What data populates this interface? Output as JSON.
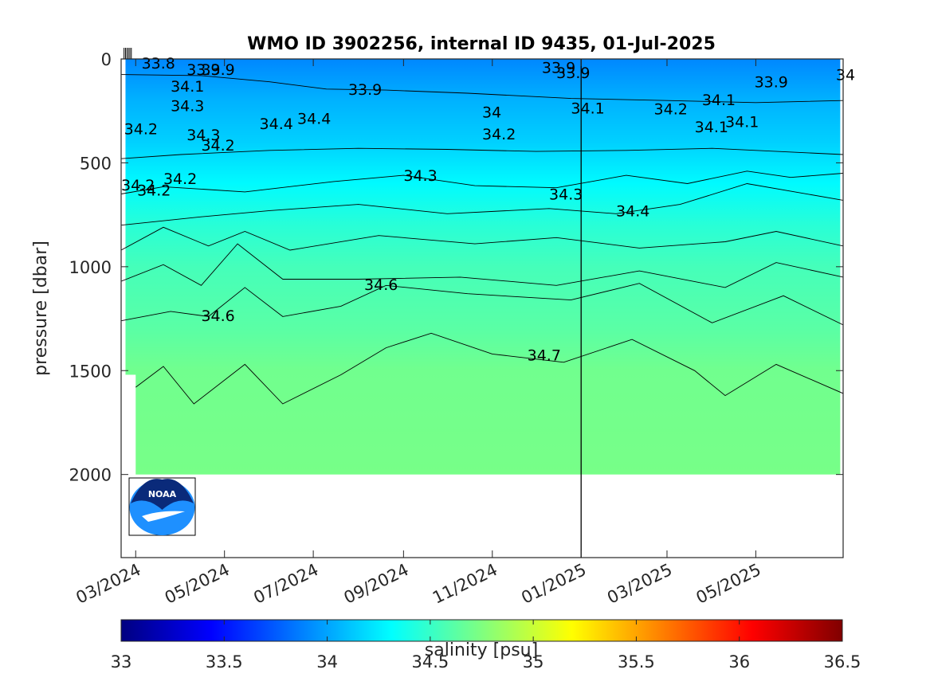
{
  "chart_data": {
    "type": "heatmap",
    "title": "WMO ID 3902256, internal ID 9435, 01-Jul-2025",
    "ylabel": "pressure [dbar]",
    "y_reversed": true,
    "ylim": [
      0,
      2400
    ],
    "yticks": [
      0,
      500,
      1000,
      1500,
      2000
    ],
    "ytick_labels": [
      "0",
      "500",
      "1000",
      "1500",
      "2000"
    ],
    "xlim": [
      "2024-02-20",
      "2025-06-30"
    ],
    "xticks": [
      "2024-03-01",
      "2024-05-01",
      "2024-07-01",
      "2024-09-01",
      "2024-11-01",
      "2025-01-01",
      "2025-03-01",
      "2025-05-01"
    ],
    "xtick_labels": [
      "03/2024",
      "05/2024",
      "07/2024",
      "09/2024",
      "11/2024",
      "01/2025",
      "03/2025",
      "05/2025"
    ],
    "year_boundary_line": "2025-01-01",
    "colorbar": {
      "label": "salinity [psu]",
      "range": [
        33,
        36.5
      ],
      "ticks": [
        33,
        33.5,
        34,
        34.5,
        35,
        35.5,
        36,
        36.5
      ],
      "tick_labels": [
        "33",
        "33.5",
        "34",
        "34.5",
        "35",
        "35.5",
        "36",
        "36.5"
      ],
      "colormap": "jet"
    },
    "contour_levels": [
      33.8,
      33.9,
      34,
      34.1,
      34.2,
      34.3,
      34.4,
      34.5,
      34.6,
      34.7
    ],
    "salinity_profile": [
      {
        "pressure": 0,
        "salinity": 33.9
      },
      {
        "pressure": 200,
        "salinity": 34.05
      },
      {
        "pressure": 400,
        "salinity": 34.15
      },
      {
        "pressure": 600,
        "salinity": 34.3
      },
      {
        "pressure": 800,
        "salinity": 34.45
      },
      {
        "pressure": 1000,
        "salinity": 34.55
      },
      {
        "pressure": 1300,
        "salinity": 34.62
      },
      {
        "pressure": 1500,
        "salinity": 34.7
      },
      {
        "pressure": 2000,
        "salinity": 34.72
      }
    ],
    "contour_labels": [
      {
        "text": "33.8",
        "date": "2024-03-05",
        "pressure": 20
      },
      {
        "text": "33.9",
        "date": "2024-04-05",
        "pressure": 50
      },
      {
        "text": "33.9",
        "date": "2024-04-15",
        "pressure": 50
      },
      {
        "text": "34.1",
        "date": "2024-03-25",
        "pressure": 130
      },
      {
        "text": "34.3",
        "date": "2024-03-25",
        "pressure": 225
      },
      {
        "text": "34.2",
        "date": "2024-02-22",
        "pressure": 335
      },
      {
        "text": "34.3",
        "date": "2024-04-05",
        "pressure": 365
      },
      {
        "text": "34.2",
        "date": "2024-04-15",
        "pressure": 415
      },
      {
        "text": "34.4",
        "date": "2024-05-25",
        "pressure": 310
      },
      {
        "text": "34.4",
        "date": "2024-06-20",
        "pressure": 285
      },
      {
        "text": "33.9",
        "date": "2024-07-25",
        "pressure": 145
      },
      {
        "text": "34.2",
        "date": "2024-03-20",
        "pressure": 575
      },
      {
        "text": "34.2",
        "date": "2024-02-20",
        "pressure": 605
      },
      {
        "text": "34.2",
        "date": "2024-03-02",
        "pressure": 630
      },
      {
        "text": "34.3",
        "date": "2024-09-01",
        "pressure": 560
      },
      {
        "text": "34",
        "date": "2024-10-25",
        "pressure": 255
      },
      {
        "text": "34.2",
        "date": "2024-10-25",
        "pressure": 360
      },
      {
        "text": "33.9",
        "date": "2024-12-05",
        "pressure": 40
      },
      {
        "text": "33.9",
        "date": "2024-12-15",
        "pressure": 65
      },
      {
        "text": "34.1",
        "date": "2024-12-25",
        "pressure": 235
      },
      {
        "text": "34.2",
        "date": "2025-02-20",
        "pressure": 240
      },
      {
        "text": "34.1",
        "date": "2025-03-25",
        "pressure": 195
      },
      {
        "text": "34.1",
        "date": "2025-03-20",
        "pressure": 325
      },
      {
        "text": "34.1",
        "date": "2025-04-10",
        "pressure": 300
      },
      {
        "text": "33.9",
        "date": "2025-04-30",
        "pressure": 110
      },
      {
        "text": "34",
        "date": "2025-06-25",
        "pressure": 75
      },
      {
        "text": "34.3",
        "date": "2024-12-10",
        "pressure": 650
      },
      {
        "text": "34.4",
        "date": "2025-01-25",
        "pressure": 730
      },
      {
        "text": "34.6",
        "date": "2024-08-05",
        "pressure": 1085
      },
      {
        "text": "34.6",
        "date": "2024-04-15",
        "pressure": 1235
      },
      {
        "text": "34.7",
        "date": "2024-11-25",
        "pressure": 1425
      }
    ],
    "isolines": [
      {
        "level": 33.9,
        "points": [
          [
            "2024-02-20",
            75
          ],
          [
            "2024-04-15",
            80
          ],
          [
            "2024-06-01",
            110
          ],
          [
            "2024-07-10",
            145
          ],
          [
            "2024-08-20",
            150
          ],
          [
            "2024-10-15",
            165
          ],
          [
            "2024-12-25",
            190
          ],
          [
            "2025-03-01",
            200
          ],
          [
            "2025-05-01",
            210
          ],
          [
            "2025-06-30",
            200
          ]
        ]
      },
      {
        "level": 34.2,
        "points": [
          [
            "2024-02-20",
            480
          ],
          [
            "2024-04-01",
            460
          ],
          [
            "2024-06-01",
            440
          ],
          [
            "2024-08-01",
            430
          ],
          [
            "2024-10-01",
            435
          ],
          [
            "2024-12-01",
            445
          ],
          [
            "2025-02-01",
            440
          ],
          [
            "2025-04-01",
            430
          ],
          [
            "2025-06-30",
            460
          ]
        ]
      },
      {
        "level": 34.3,
        "points": [
          [
            "2024-02-20",
            650
          ],
          [
            "2024-03-20",
            615
          ],
          [
            "2024-05-15",
            640
          ],
          [
            "2024-07-15",
            590
          ],
          [
            "2024-09-01",
            560
          ],
          [
            "2024-10-20",
            610
          ],
          [
            "2024-12-15",
            620
          ],
          [
            "2025-02-01",
            560
          ],
          [
            "2025-03-15",
            600
          ],
          [
            "2025-04-25",
            540
          ],
          [
            "2025-05-25",
            570
          ],
          [
            "2025-06-30",
            550
          ]
        ]
      },
      {
        "level": 34.4,
        "points": [
          [
            "2024-02-20",
            800
          ],
          [
            "2024-04-15",
            760
          ],
          [
            "2024-06-01",
            730
          ],
          [
            "2024-08-01",
            700
          ],
          [
            "2024-10-01",
            745
          ],
          [
            "2024-12-10",
            720
          ],
          [
            "2025-01-25",
            745
          ],
          [
            "2025-03-10",
            700
          ],
          [
            "2025-04-25",
            600
          ],
          [
            "2025-06-30",
            680
          ]
        ]
      },
      {
        "level": 34.5,
        "points": [
          [
            "2024-02-20",
            920
          ],
          [
            "2024-03-20",
            810
          ],
          [
            "2024-04-20",
            900
          ],
          [
            "2024-05-15",
            830
          ],
          [
            "2024-06-15",
            920
          ],
          [
            "2024-08-15",
            850
          ],
          [
            "2024-10-20",
            890
          ],
          [
            "2024-12-15",
            860
          ],
          [
            "2025-02-10",
            910
          ],
          [
            "2025-04-10",
            880
          ],
          [
            "2025-05-15",
            830
          ],
          [
            "2025-06-30",
            900
          ]
        ]
      },
      {
        "level": 34.55,
        "points": [
          [
            "2024-02-20",
            1070
          ],
          [
            "2024-03-20",
            990
          ],
          [
            "2024-04-15",
            1090
          ],
          [
            "2024-05-10",
            890
          ],
          [
            "2024-06-10",
            1060
          ],
          [
            "2024-08-01",
            1060
          ],
          [
            "2024-10-10",
            1050
          ],
          [
            "2024-12-15",
            1090
          ],
          [
            "2025-02-10",
            1020
          ],
          [
            "2025-04-10",
            1100
          ],
          [
            "2025-05-15",
            980
          ],
          [
            "2025-06-30",
            1050
          ]
        ]
      },
      {
        "level": 34.6,
        "points": [
          [
            "2024-02-20",
            1260
          ],
          [
            "2024-03-25",
            1215
          ],
          [
            "2024-04-20",
            1240
          ],
          [
            "2024-05-15",
            1100
          ],
          [
            "2024-06-10",
            1240
          ],
          [
            "2024-07-20",
            1190
          ],
          [
            "2024-08-20",
            1090
          ],
          [
            "2024-10-15",
            1130
          ],
          [
            "2024-12-25",
            1160
          ],
          [
            "2025-02-10",
            1080
          ],
          [
            "2025-04-01",
            1270
          ],
          [
            "2025-05-20",
            1140
          ],
          [
            "2025-06-30",
            1280
          ]
        ]
      },
      {
        "level": 34.7,
        "points": [
          [
            "2024-03-01",
            1580
          ],
          [
            "2024-03-20",
            1480
          ],
          [
            "2024-04-10",
            1660
          ],
          [
            "2024-05-15",
            1470
          ],
          [
            "2024-06-10",
            1660
          ],
          [
            "2024-07-20",
            1520
          ],
          [
            "2024-08-20",
            1390
          ],
          [
            "2024-09-20",
            1320
          ],
          [
            "2024-11-01",
            1420
          ],
          [
            "2024-12-20",
            1460
          ],
          [
            "2025-02-05",
            1350
          ],
          [
            "2025-03-20",
            1500
          ],
          [
            "2025-04-10",
            1620
          ],
          [
            "2025-05-15",
            1470
          ],
          [
            "2025-06-30",
            1610
          ]
        ]
      }
    ]
  },
  "colors": {
    "background": "#ffffff",
    "deep_water": "#80ff80",
    "contour_line": "#000000",
    "axis": "#262626",
    "noaa_blue": "#1e90ff",
    "noaa_navy": "#0a2a7a"
  },
  "logo": {
    "text": "NOAA",
    "icon": "noaa-logo-icon"
  }
}
